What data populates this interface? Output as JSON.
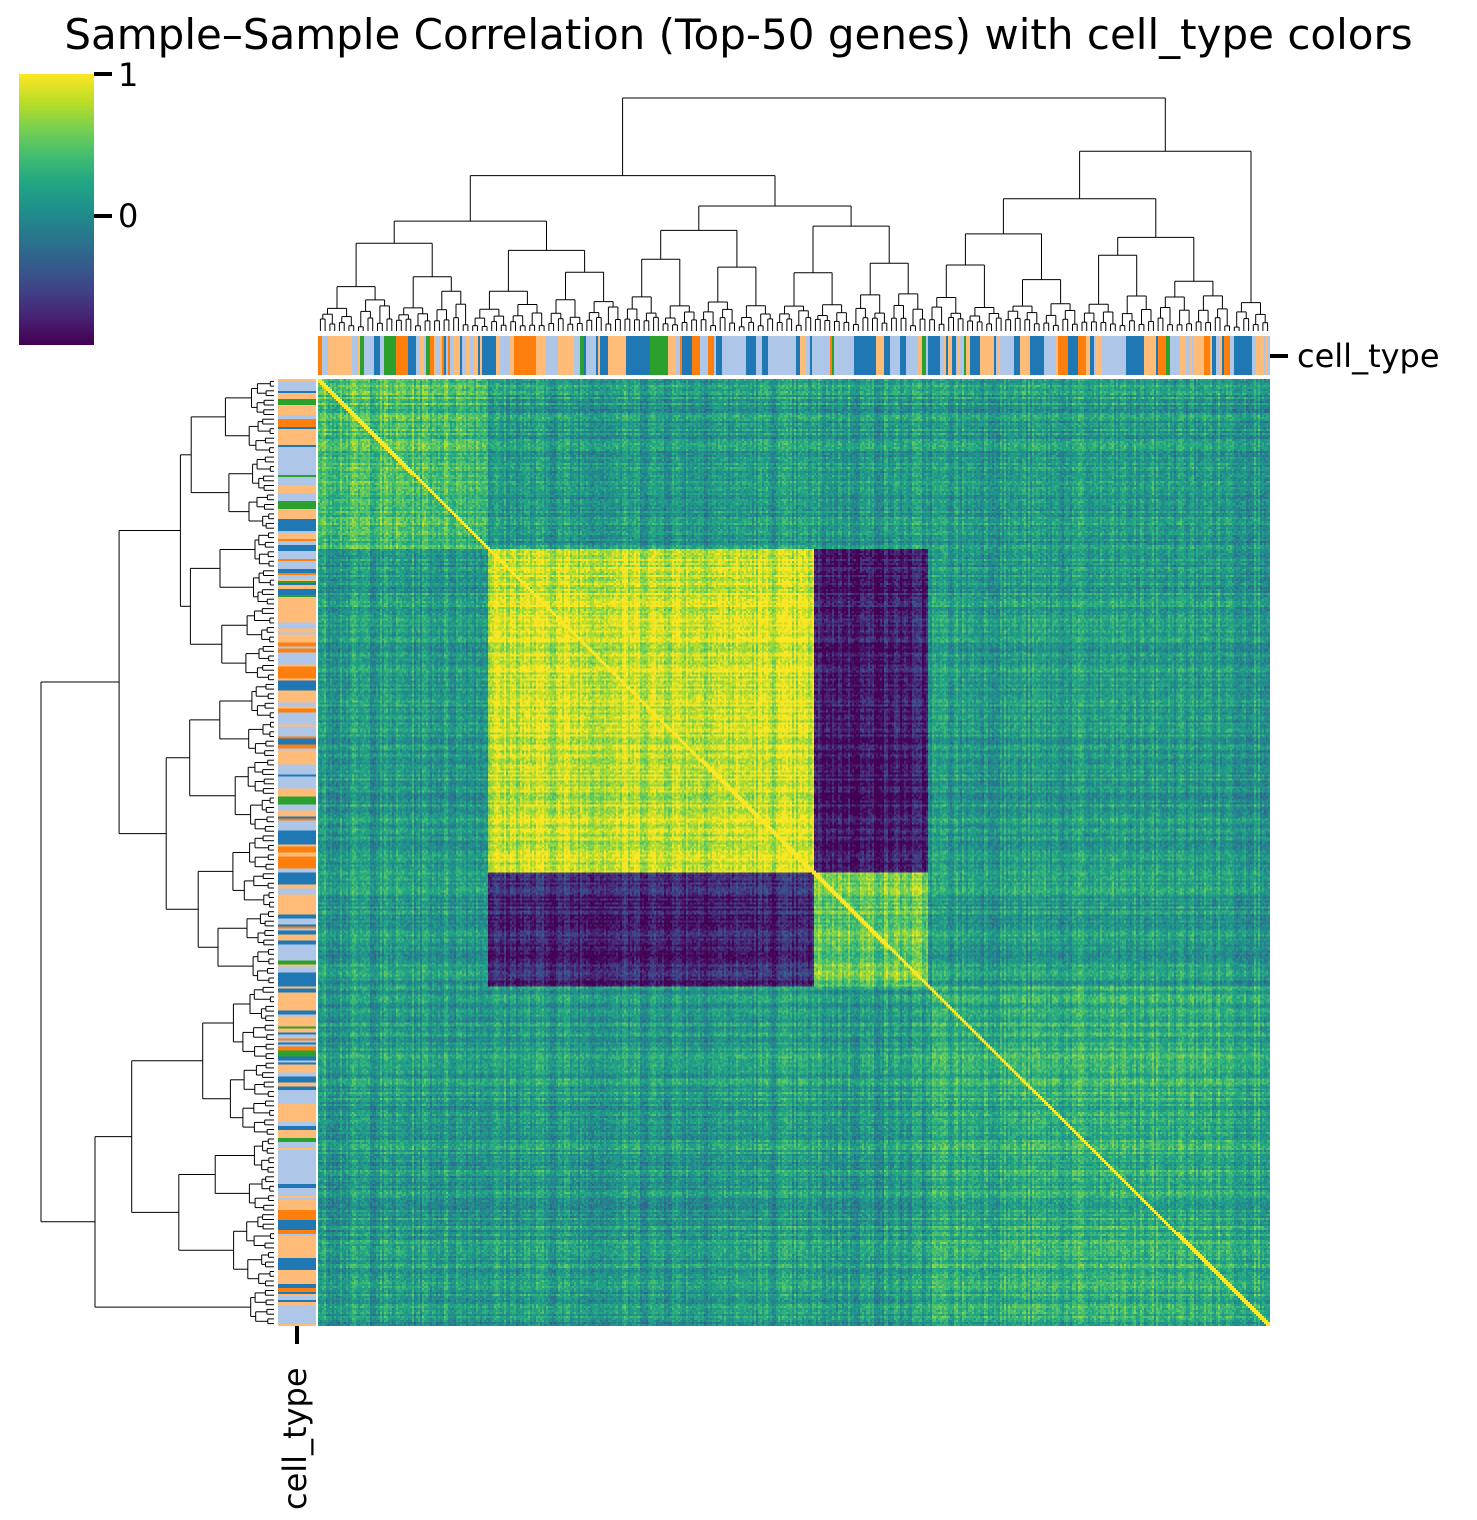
{
  "chart_data": {
    "type": "heatmap",
    "title": "Sample–Sample Correlation (Top-50 genes) with cell_type colors",
    "matrix": "sample-by-sample correlation, hierarchically clustered rows and columns",
    "colormap": "viridis",
    "colorbar": {
      "ticks": [
        1,
        0
      ],
      "vmax": 1,
      "vmin": -0.9
    },
    "row_dendrogram": true,
    "col_dendrogram": true,
    "annotation": {
      "label": "cell_type",
      "colors": [
        "#aec7e8",
        "#1f77b4",
        "#ffbb78",
        "#ff7f0e",
        "#2ca02c"
      ]
    },
    "blocks": [
      {
        "rows": [
          0.0,
          0.178
        ],
        "cols": [
          0.0,
          0.178
        ],
        "value": 0.45
      },
      {
        "rows": [
          0.178,
          0.52
        ],
        "cols": [
          0.178,
          0.52
        ],
        "value": 0.85
      },
      {
        "rows": [
          0.52,
          0.64
        ],
        "cols": [
          0.52,
          0.64
        ],
        "value": 0.55
      },
      {
        "rows": [
          0.178,
          0.52
        ],
        "cols": [
          0.52,
          0.64
        ],
        "value": -0.75
      },
      {
        "rows": [
          0.52,
          0.64
        ],
        "cols": [
          0.178,
          0.52
        ],
        "value": -0.7
      },
      {
        "rows": [
          0.64,
          1.0
        ],
        "cols": [
          0.64,
          1.0
        ],
        "value": 0.3
      }
    ],
    "grid": false
  }
}
